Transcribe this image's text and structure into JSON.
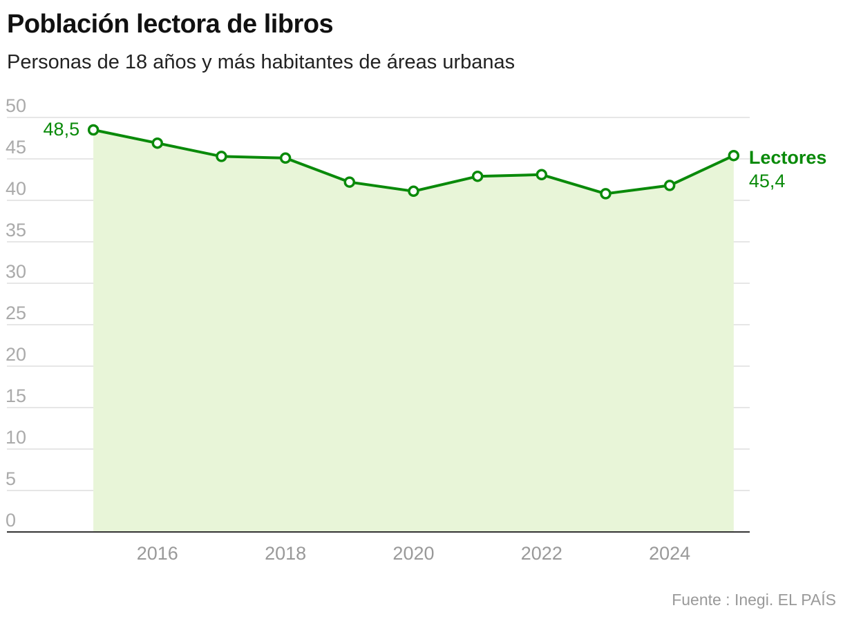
{
  "header": {
    "title": "Población lectora de libros",
    "subtitle": "Personas de 18 años y más habitantes de áreas urbanas"
  },
  "footer": {
    "source": "Fuente : Inegi. EL PAÍS"
  },
  "colors": {
    "line": "#0a8a0a",
    "area": "#e8f5d8",
    "grid": "#dddddd",
    "axis": "#333333"
  },
  "chart_data": {
    "type": "area",
    "x": [
      2015,
      2016,
      2017,
      2018,
      2019,
      2020,
      2021,
      2022,
      2023,
      2024,
      2025
    ],
    "series": [
      {
        "name": "Lectores",
        "values": [
          48.5,
          46.9,
          45.3,
          45.1,
          42.2,
          41.1,
          42.9,
          43.1,
          40.8,
          41.8,
          45.4
        ]
      }
    ],
    "xticks": [
      "2016",
      "2018",
      "2020",
      "2022",
      "2024"
    ],
    "yticks": [
      "0",
      "5",
      "10",
      "15",
      "20",
      "25",
      "30",
      "35",
      "40",
      "45",
      "50"
    ],
    "ylim": [
      0,
      50
    ],
    "xlim": [
      2013.65,
      2025.25
    ],
    "grid": true,
    "legend": "direct-label-right",
    "data_labels": {
      "first": "48,5",
      "last": "45,4"
    }
  }
}
